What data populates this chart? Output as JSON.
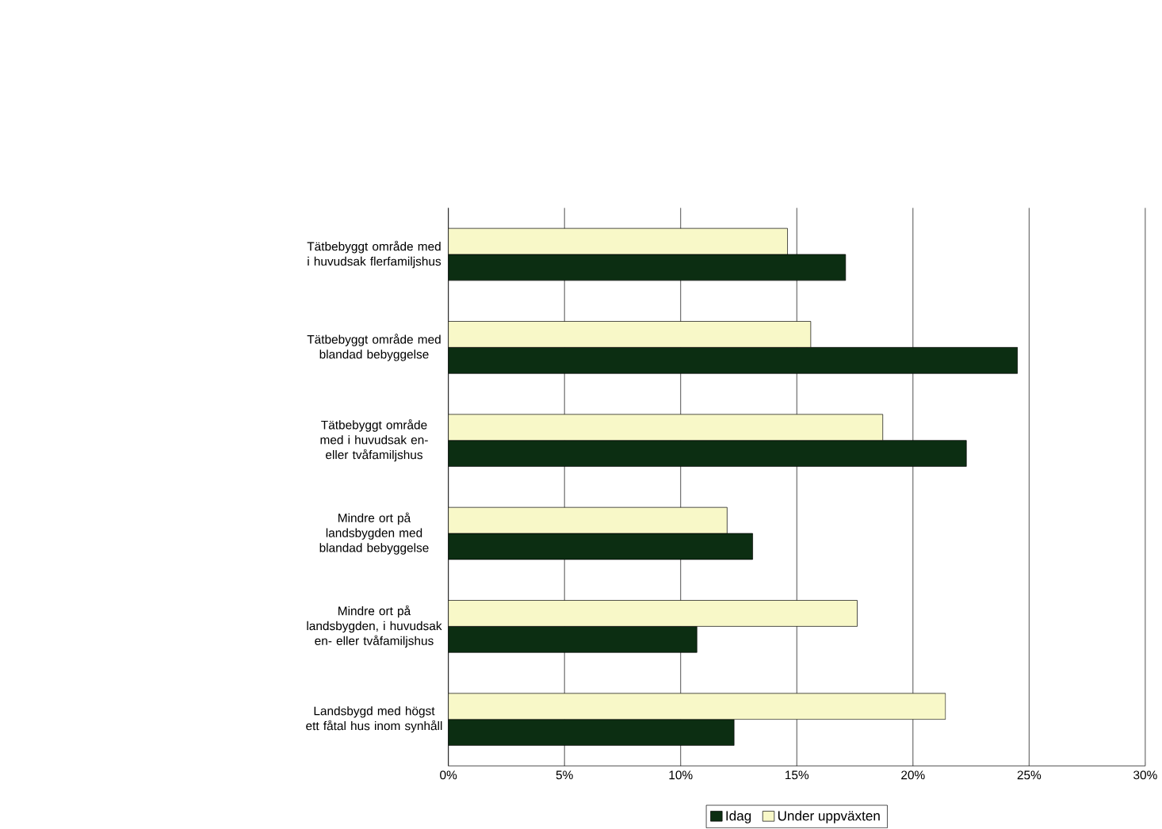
{
  "chart_data": {
    "type": "bar",
    "orientation": "horizontal",
    "categories": [
      "Tätbebyggt område med i huvudsak flerfamiljshus",
      "Tätbebyggt område med blandad bebyggelse",
      "Tätbebyggt område med i huvudsak en- eller tvåfamiljshus",
      "Mindre ort på landsbygden med blandad bebyggelse",
      "Mindre ort på landsbygden, i huvudsak en- eller tvåfamiljshus",
      "Landsbygd med högst ett fåtal hus inom synhåll"
    ],
    "series": [
      {
        "name": "Idag",
        "color": "#0c2e12",
        "values": [
          17.1,
          24.5,
          22.3,
          13.1,
          10.7,
          12.3
        ]
      },
      {
        "name": "Under uppväxten",
        "color": "#f8f8c8",
        "values": [
          14.6,
          15.6,
          18.7,
          12.0,
          17.6,
          21.4
        ]
      }
    ],
    "xlim": [
      0,
      30
    ],
    "xticks": [
      {
        "value": 0,
        "label": "0%"
      },
      {
        "value": 5,
        "label": "5%"
      },
      {
        "value": 10,
        "label": "10%"
      },
      {
        "value": 15,
        "label": "15%"
      },
      {
        "value": 20,
        "label": "20%"
      },
      {
        "value": 25,
        "label": "25%"
      },
      {
        "value": 30,
        "label": "30%"
      }
    ],
    "grid": "x",
    "legend": "bottom"
  }
}
